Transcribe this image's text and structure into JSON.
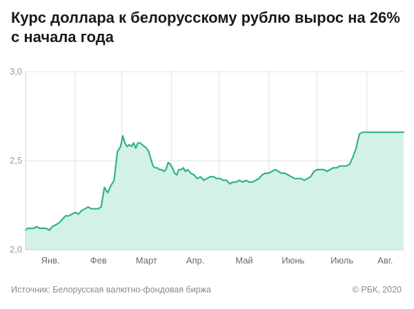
{
  "header": {
    "title": "Курс доллара к белорусскому рублю вырос на 26% с начала года"
  },
  "footer": {
    "source": "Источник: Белорусская валютно-фондовая биржа",
    "copyright": "© РБК, 2020"
  },
  "colors": {
    "line": "#2db388",
    "area": "#d4f1e5",
    "grid": "#e2e2e2",
    "title": "#1a1a1a"
  },
  "chart_data": {
    "type": "area",
    "title": "Курс доллара к белорусскому рублю вырос на 26% с начала года",
    "xlabel": "",
    "ylabel": "",
    "ylim": [
      2.0,
      3.0
    ],
    "grid": true,
    "y_ticks": [
      "2,0",
      "2,5",
      "3,0"
    ],
    "y_tick_values": [
      2.0,
      2.5,
      3.0
    ],
    "months": [
      "Янв.",
      "Фев",
      "Март",
      "Апр.",
      "Май",
      "Июнь",
      "Июль",
      "Авг."
    ],
    "series": [
      {
        "x": [
          0,
          2,
          5,
          8,
          10,
          13,
          16,
          19,
          22,
          25,
          28,
          31,
          34,
          37,
          40,
          43,
          46,
          49,
          52,
          55,
          58,
          61,
          64,
          67,
          70,
          73,
          76,
          79,
          82,
          85,
          88,
          90,
          92,
          94,
          96,
          98,
          100,
          102,
          104,
          106,
          108,
          110,
          112,
          114,
          116,
          118,
          120,
          122,
          124,
          126,
          128,
          130,
          132,
          134,
          136,
          138,
          140,
          142,
          144,
          146,
          148,
          150,
          153,
          156,
          159,
          162,
          165,
          168,
          171,
          174,
          177,
          180,
          183,
          186,
          189,
          192,
          195,
          198,
          201,
          204,
          207,
          210,
          213,
          216,
          219,
          222,
          225,
          228,
          231,
          234,
          237,
          240,
          243,
          246,
          249,
          252,
          255,
          258,
          261,
          264,
          267,
          270,
          273,
          276,
          279,
          282,
          285,
          288,
          291,
          294,
          297,
          300,
          303,
          306,
          309,
          312,
          315,
          318,
          321,
          324,
          327,
          330,
          333,
          336,
          339,
          342,
          345,
          348,
          350
        ],
        "values": [
          2.11,
          2.12,
          2.12,
          2.12,
          2.13,
          2.12,
          2.12,
          2.12,
          2.11,
          2.13,
          2.14,
          2.15,
          2.17,
          2.19,
          2.19,
          2.2,
          2.21,
          2.2,
          2.22,
          2.23,
          2.24,
          2.23,
          2.23,
          2.23,
          2.24,
          2.35,
          2.32,
          2.36,
          2.39,
          2.55,
          2.58,
          2.64,
          2.6,
          2.58,
          2.59,
          2.58,
          2.6,
          2.57,
          2.6,
          2.6,
          2.59,
          2.58,
          2.57,
          2.55,
          2.51,
          2.47,
          2.46,
          2.46,
          2.45,
          2.45,
          2.44,
          2.45,
          2.49,
          2.48,
          2.46,
          2.43,
          2.42,
          2.45,
          2.45,
          2.46,
          2.44,
          2.45,
          2.43,
          2.42,
          2.4,
          2.41,
          2.39,
          2.4,
          2.41,
          2.41,
          2.4,
          2.4,
          2.39,
          2.39,
          2.37,
          2.38,
          2.38,
          2.39,
          2.38,
          2.39,
          2.38,
          2.38,
          2.39,
          2.4,
          2.42,
          2.43,
          2.43,
          2.44,
          2.45,
          2.44,
          2.43,
          2.43,
          2.42,
          2.41,
          2.4,
          2.4,
          2.4,
          2.39,
          2.4,
          2.41,
          2.44,
          2.45,
          2.45,
          2.45,
          2.44,
          2.45,
          2.46,
          2.46,
          2.47,
          2.47,
          2.47,
          2.48,
          2.52,
          2.57,
          2.65,
          2.66,
          2.66,
          2.66,
          2.66,
          2.66,
          2.66,
          2.66,
          2.66,
          2.66,
          2.66,
          2.66,
          2.66,
          2.66,
          2.66
        ]
      }
    ]
  }
}
